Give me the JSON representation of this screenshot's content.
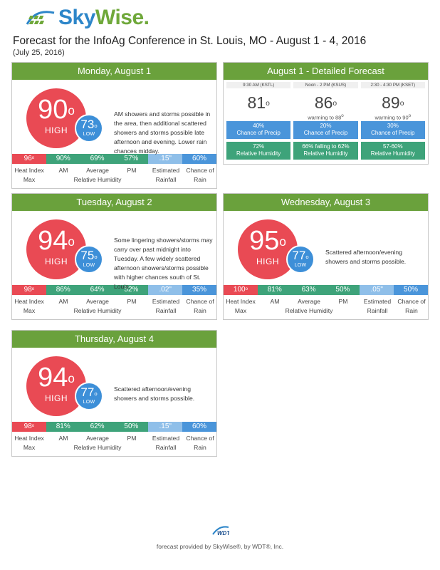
{
  "brand": {
    "name_sky": "Sky",
    "name_wise": "Wise",
    "name_suffix": "."
  },
  "page": {
    "title": "Forecast for the InfoAg Conference in St. Louis, MO - August 1 - 4, 2016",
    "date": "(July 25, 2016)"
  },
  "labels": {
    "high": "HIGH",
    "low": "LOW",
    "heat_index_1": "Heat Index",
    "heat_index_2": "Max",
    "am": "AM",
    "average": "Average",
    "pm": "PM",
    "relative_humidity": "Relative Humidity",
    "rainfall_1": "Estimated",
    "rainfall_2": "Rainfall",
    "chance_1": "Chance of",
    "chance_2": "Rain"
  },
  "days": [
    {
      "title": "Monday, August 1",
      "high": "90",
      "low": "73",
      "description": "AM showers and storms possible in the area, then additional scattered showers and storms possible late afternoon and evening. Lower rain chances midday.",
      "heat_index": "96",
      "rh_am": "90%",
      "rh_avg": "69%",
      "rh_pm": "57%",
      "rainfall": ".15\"",
      "chance": "60%"
    },
    {
      "title": "Tuesday, August 2",
      "high": "94",
      "low": "75",
      "description": "Some lingering showers/storms may carry over past midnight into Tuesday.  A few widely scattered afternoon showers/storms possible with higher chances south of St. Louis.",
      "heat_index": "98",
      "rh_am": "86%",
      "rh_avg": "64%",
      "rh_pm": "52%",
      "rainfall": ".02\"",
      "chance": "35%"
    },
    {
      "title": "Wednesday, August 3",
      "high": "95",
      "low": "77",
      "description": "Scattered afternoon/evening showers and storms possible.",
      "heat_index": "100",
      "rh_am": "81%",
      "rh_avg": "63%",
      "rh_pm": "50%",
      "rainfall": ".05\"",
      "chance": "50%"
    },
    {
      "title": "Thursday, August 4",
      "high": "94",
      "low": "77",
      "description": "Scattered afternoon/evening showers and storms possible.",
      "heat_index": "98",
      "rh_am": "81%",
      "rh_avg": "62%",
      "rh_pm": "50%",
      "rainfall": ".15\"",
      "chance": "60%"
    }
  ],
  "detailed": {
    "title": "August 1 - Detailed Forecast",
    "periods": [
      {
        "time": "9:30 AM (KSTL)",
        "temp": "81",
        "note": "",
        "note_deg": "",
        "precip_value": "40%",
        "precip_label": "Chance of Precip",
        "humidity_value": "72%",
        "humidity_label": "Relative Humidity"
      },
      {
        "time": "Noon - 2 PM (KSUS)",
        "temp": "86",
        "note": "warming to 88",
        "note_deg": "o",
        "precip_value": "20%",
        "precip_label": "Chance of Precip",
        "humidity_value": "66% falling to 62%",
        "humidity_label": "Relative Humidity"
      },
      {
        "time": "2:30 - 4:30 PM (KSET)",
        "temp": "89",
        "note": "warming to 90",
        "note_deg": "o",
        "precip_value": "30%",
        "precip_label": "Chance of Precip",
        "humidity_value": "57-60%",
        "humidity_label": "Relative Humidity"
      }
    ]
  },
  "footer": {
    "logo": "WDT",
    "text": "forecast provided by SkyWise®, by WDT®, Inc."
  },
  "colors": {
    "header_green": "#6aa13c",
    "high_red": "#e94a54",
    "low_blue": "#3d8fd8",
    "humidity_green": "#3ea37a",
    "rainfall_light_blue": "#8fbfe9",
    "chance_blue": "#4a95da",
    "brand_blue": "#2d86c9"
  },
  "icons": {
    "logo": "skywise-grid-logo-icon",
    "footer": "wdt-logo-icon"
  }
}
